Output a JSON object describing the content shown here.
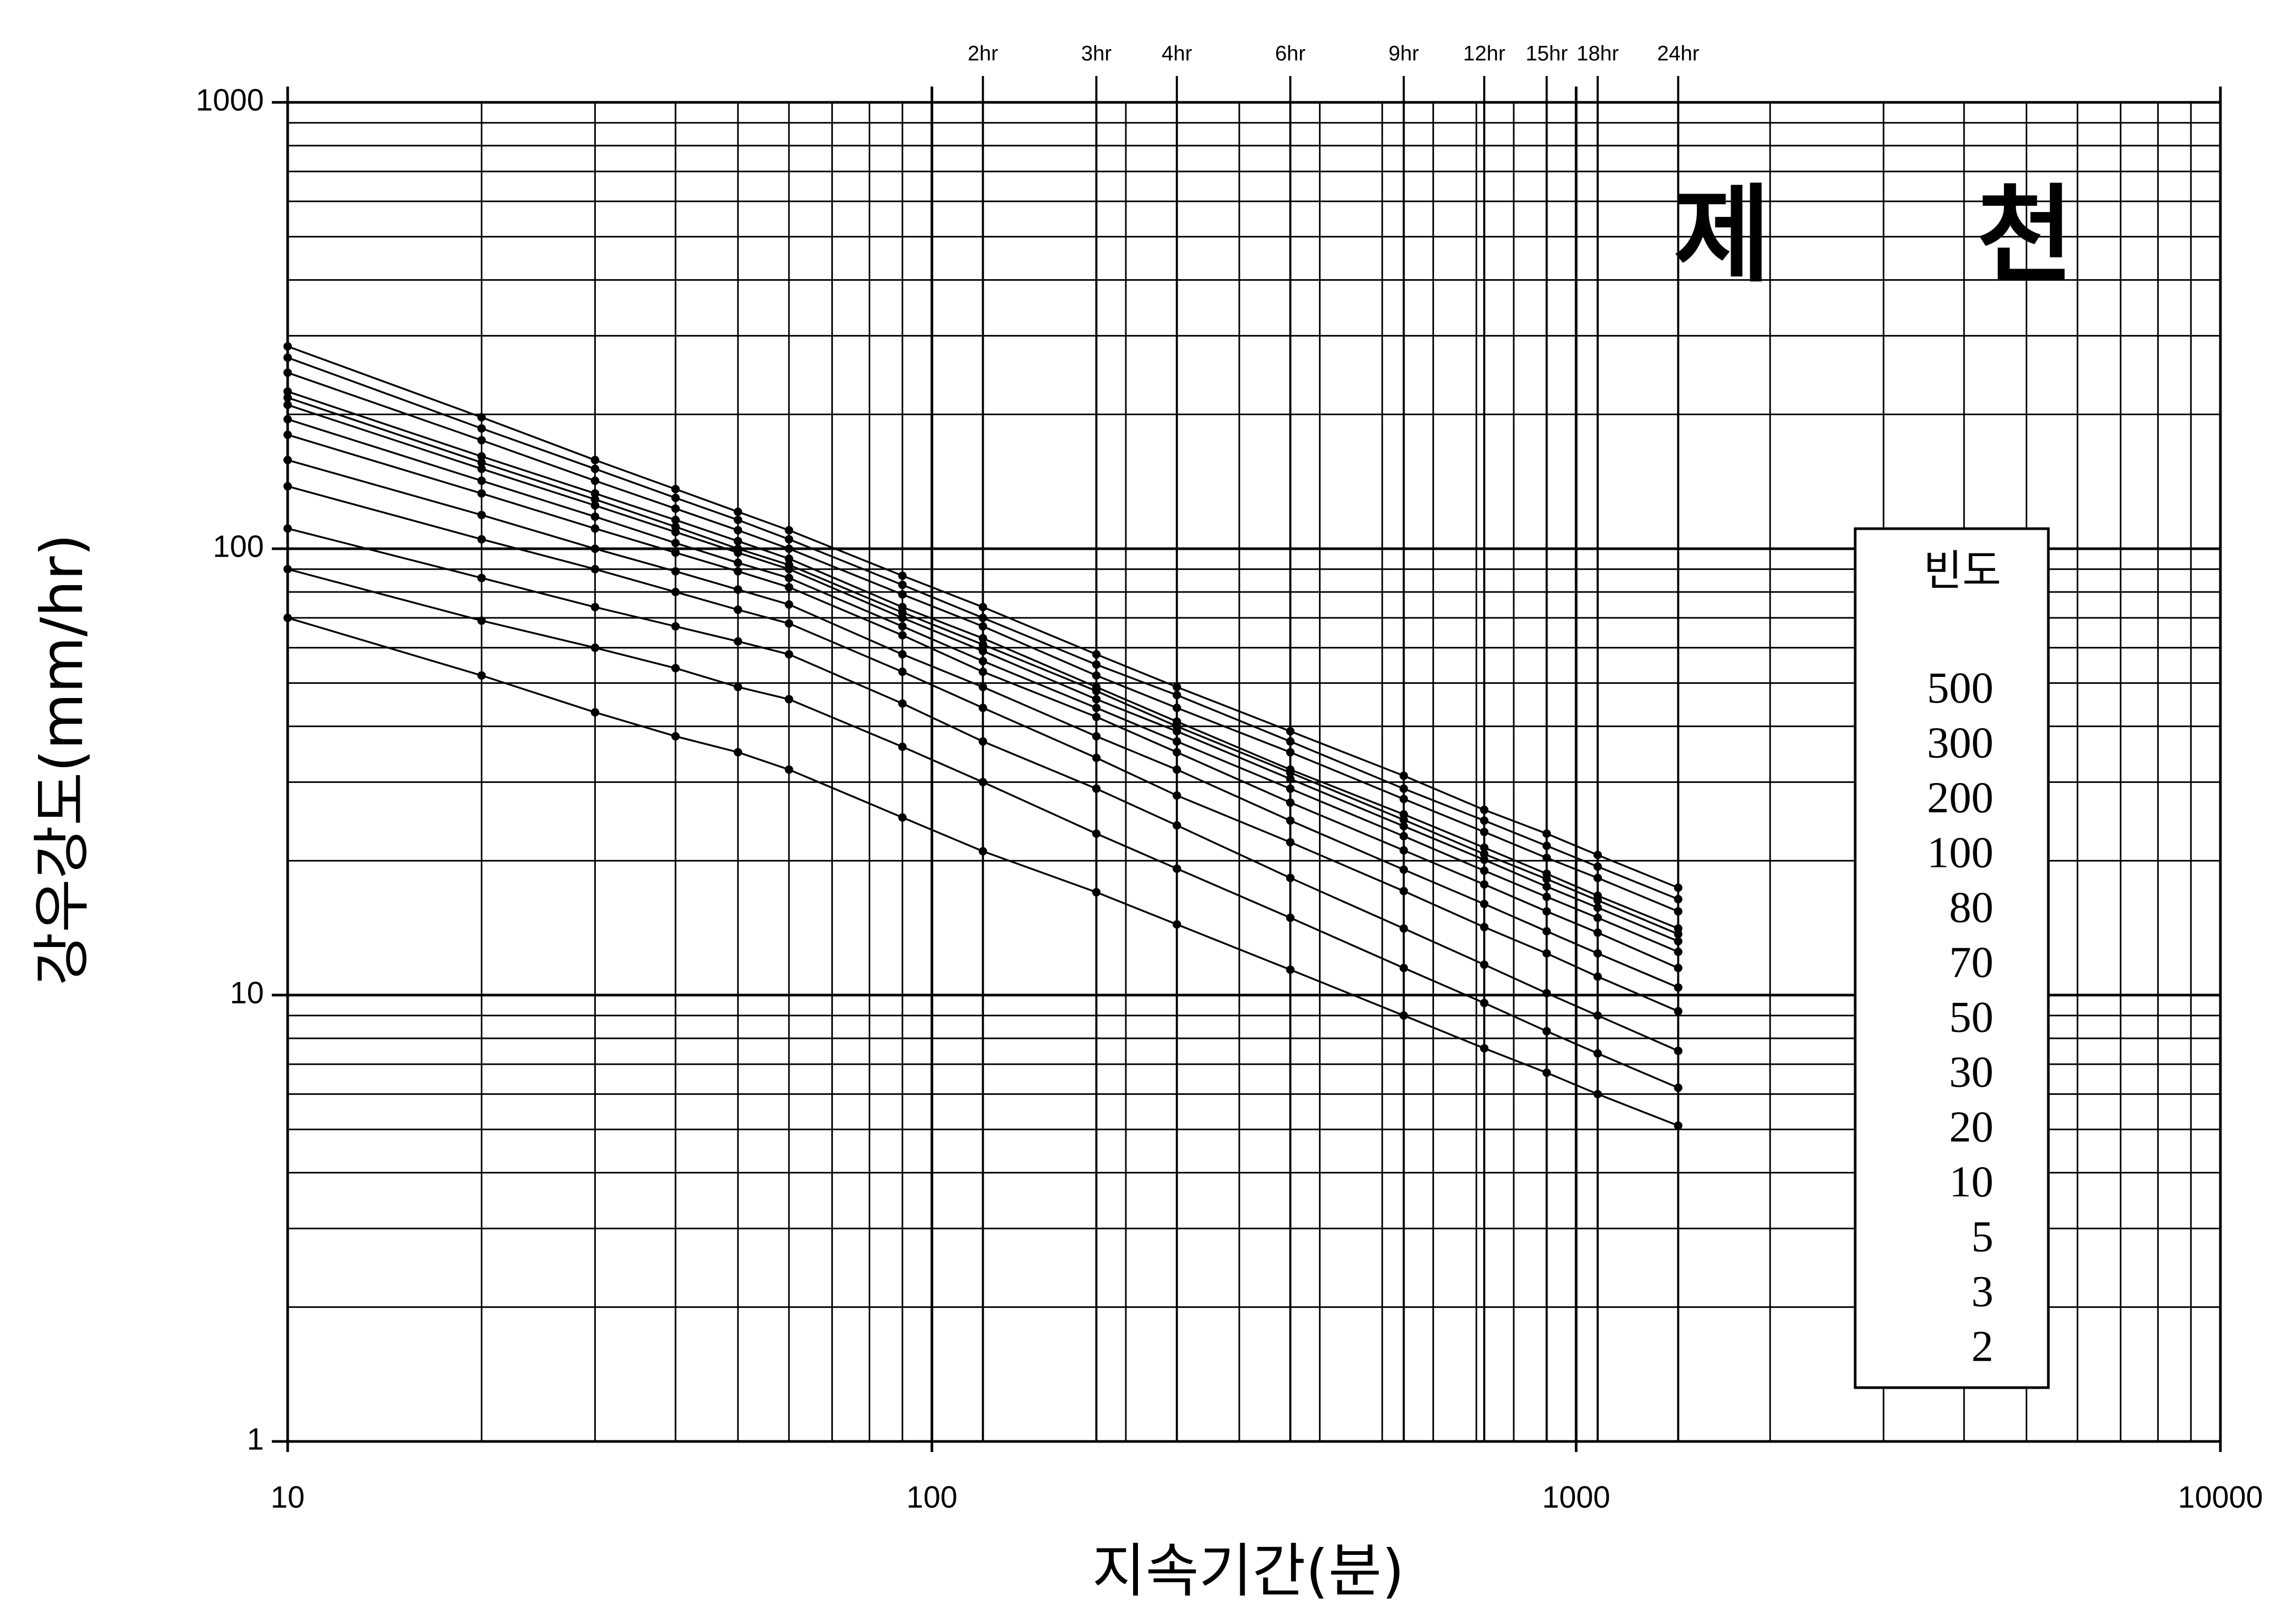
{
  "chart_data": {
    "type": "line",
    "title": "제 천",
    "xlabel": "지속기간(분)",
    "ylabel": "강우강도(mm/hr)",
    "log_x": true,
    "log_y": true,
    "grid": true,
    "legend_title": "빈도",
    "legend_position": "right",
    "xlim": [
      10,
      10000
    ],
    "xticks": [
      10,
      100,
      1000,
      10000
    ],
    "ylim": [
      1,
      1000
    ],
    "yticks": [
      1,
      10,
      100,
      1000
    ],
    "top_ticks": [
      {
        "value": 120,
        "label": "2hr"
      },
      {
        "value": 180,
        "label": "3hr"
      },
      {
        "value": 240,
        "label": "4hr"
      },
      {
        "value": 360,
        "label": "6hr"
      },
      {
        "value": 540,
        "label": "9hr"
      },
      {
        "value": 720,
        "label": "12hr"
      },
      {
        "value": 900,
        "label": "15hr"
      },
      {
        "value": 1080,
        "label": "18hr"
      },
      {
        "value": 1440,
        "label": "24hr"
      }
    ],
    "x": [
      10,
      20,
      30,
      40,
      50,
      60,
      90,
      120,
      180,
      240,
      360,
      540,
      720,
      900,
      1080,
      1440
    ],
    "series": [
      {
        "name": "500",
        "color": "#000000",
        "values": [
          284,
          197,
          158,
          136,
          121,
          110,
          87,
          74,
          58,
          49,
          39,
          31,
          26,
          23,
          20.6,
          17.4
        ]
      },
      {
        "name": "300",
        "color": "#000000",
        "values": [
          268,
          186,
          151,
          130,
          116,
          105,
          83,
          70,
          55,
          47,
          37,
          29,
          24.6,
          21.6,
          19.4,
          16.4
        ]
      },
      {
        "name": "200",
        "color": "#000000",
        "values": [
          248,
          175,
          142,
          123,
          110,
          100,
          79,
          67,
          52,
          44,
          35,
          27.5,
          23.2,
          20.3,
          18.3,
          15.4
        ]
      },
      {
        "name": "100",
        "color": "#000000",
        "values": [
          225,
          161,
          133,
          116,
          104,
          95,
          74,
          63,
          49,
          41,
          32,
          25.4,
          21.4,
          18.7,
          16.7,
          14.1
        ]
      },
      {
        "name": "80",
        "color": "#000000",
        "values": [
          218,
          156,
          129,
          112,
          100,
          92,
          72,
          61,
          48,
          40,
          31.5,
          24.7,
          20.7,
          18.2,
          16.3,
          13.7
        ]
      },
      {
        "name": "70",
        "color": "#000000",
        "values": [
          210,
          151,
          125,
          109,
          98,
          90,
          70,
          59,
          46,
          39,
          30.5,
          23.9,
          20.1,
          17.5,
          15.7,
          13.2
        ]
      },
      {
        "name": "50",
        "color": "#000000",
        "values": [
          195,
          142,
          118,
          103,
          93,
          86,
          67,
          56,
          44,
          37,
          29,
          22.7,
          19.0,
          16.6,
          14.9,
          12.5
        ]
      },
      {
        "name": "30",
        "color": "#000000",
        "values": [
          180,
          133,
          111,
          98,
          89,
          82,
          64,
          53,
          42,
          35,
          27,
          21.1,
          17.7,
          15.4,
          13.8,
          11.5
        ]
      },
      {
        "name": "20",
        "color": "#000000",
        "values": [
          158,
          119,
          100,
          89,
          81,
          75,
          58,
          49,
          38,
          32,
          24.6,
          19.1,
          16.0,
          13.9,
          12.4,
          10.4
        ]
      },
      {
        "name": "10",
        "color": "#000000",
        "values": [
          138,
          105,
          90,
          80,
          73,
          68,
          53,
          44,
          34,
          28,
          22.0,
          17.1,
          14.2,
          12.4,
          11.0,
          9.2
        ]
      },
      {
        "name": "5",
        "color": "#000000",
        "values": [
          111,
          86,
          74,
          67,
          62,
          58,
          45,
          37,
          29,
          24,
          18.3,
          14.1,
          11.7,
          10.1,
          9.0,
          7.5
        ]
      },
      {
        "name": "3",
        "color": "#000000",
        "values": [
          90,
          69,
          60,
          54,
          49,
          46,
          36,
          30,
          23,
          19.2,
          14.9,
          11.5,
          9.6,
          8.3,
          7.4,
          6.2
        ]
      },
      {
        "name": "2",
        "color": "#000000",
        "values": [
          70,
          52,
          43,
          38,
          35,
          32,
          25,
          21,
          17,
          14.4,
          11.4,
          9.0,
          7.6,
          6.7,
          6.0,
          5.1
        ]
      }
    ]
  }
}
